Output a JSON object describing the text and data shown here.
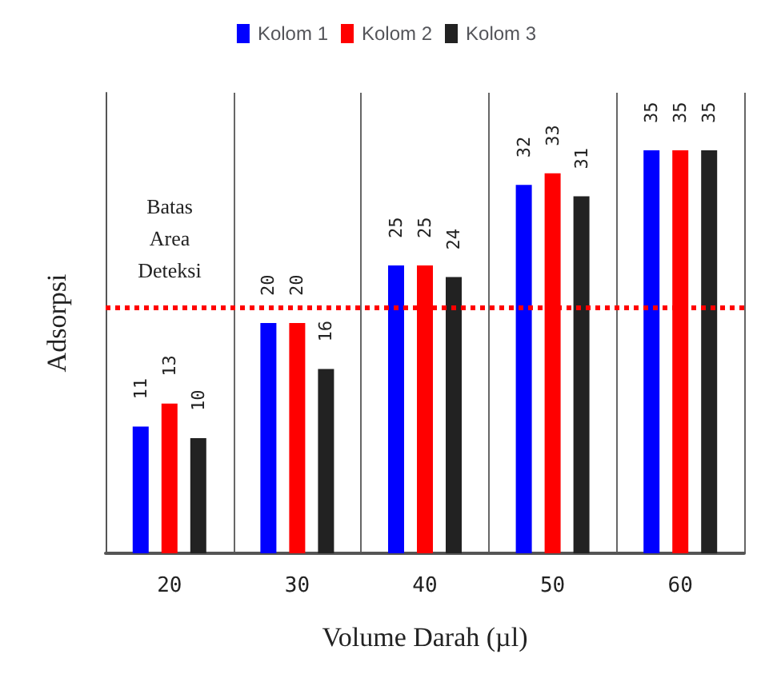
{
  "chart_data": {
    "type": "bar",
    "xlabel": "Volume Darah (µl)",
    "ylabel": "Adsorpsi",
    "categories": [
      "20",
      "30",
      "40",
      "50",
      "60"
    ],
    "series": [
      {
        "name": "Kolom 1",
        "color": "#0000ff",
        "values": [
          11,
          20,
          25,
          32,
          35
        ]
      },
      {
        "name": "Kolom 2",
        "color": "#ff0000",
        "values": [
          13,
          20,
          25,
          33,
          35
        ]
      },
      {
        "name": "Kolom 3",
        "color": "#222222",
        "values": [
          10,
          16,
          24,
          31,
          35
        ]
      }
    ],
    "data_labels": true,
    "grid": "x",
    "legend": "top",
    "tick_labels": "x",
    "ref_lines": [
      {
        "axis": "y",
        "value": 21.4,
        "label": "Batas\nArea\nDeteksi",
        "color": "#ff0000",
        "line_style": "dotted"
      }
    ]
  }
}
